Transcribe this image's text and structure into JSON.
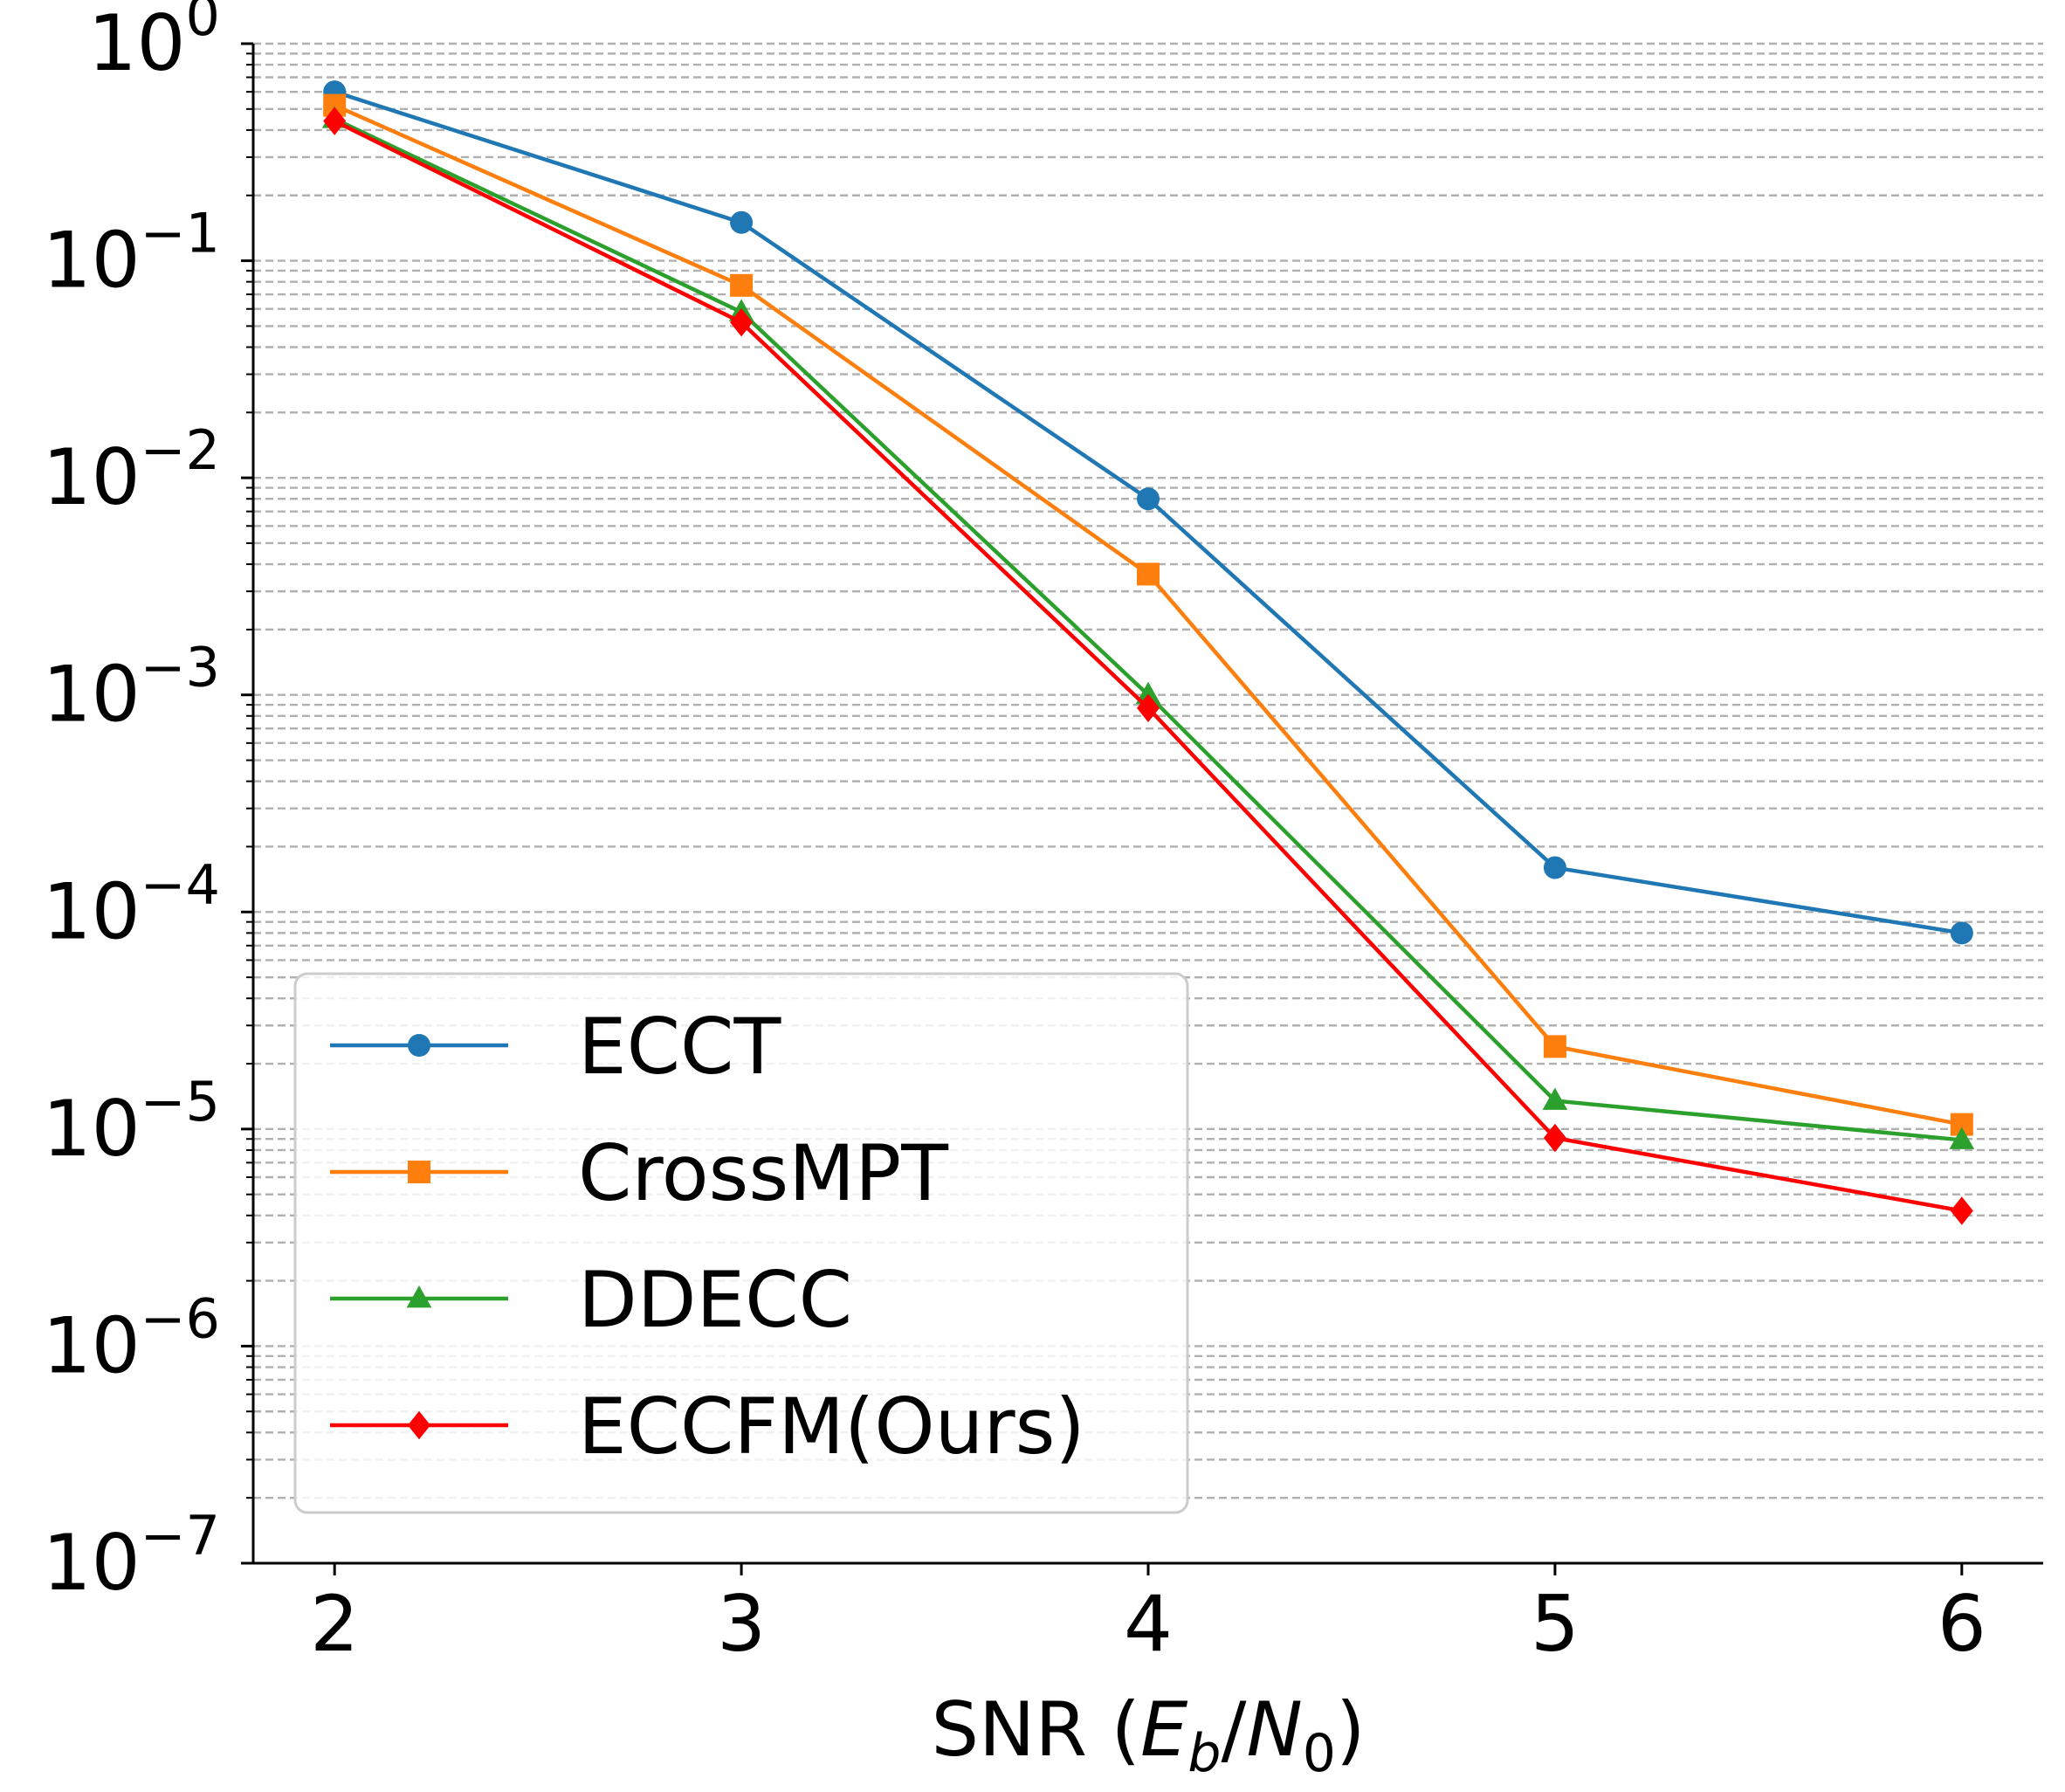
{
  "chart_data": {
    "type": "line",
    "title": "",
    "xlabel": "SNR",
    "xlabel_math": {
      "prefix": "SNR (",
      "E": "E",
      "b": "b",
      "slash": "/",
      "N": "N",
      "zero": "0",
      "suffix": ")"
    },
    "ylabel": "",
    "yscale": "log",
    "xlim": [
      1.8,
      6.2
    ],
    "ylim_exponents": [
      -7,
      0
    ],
    "x": [
      2,
      3,
      4,
      5,
      6
    ],
    "x_tick_labels": [
      "2",
      "3",
      "4",
      "5",
      "6"
    ],
    "y_tick_labels": [
      {
        "base": "10",
        "exp": "0"
      },
      {
        "base": "10",
        "exp": "−1"
      },
      {
        "base": "10",
        "exp": "−2"
      },
      {
        "base": "10",
        "exp": "−3"
      },
      {
        "base": "10",
        "exp": "−4"
      },
      {
        "base": "10",
        "exp": "−5"
      },
      {
        "base": "10",
        "exp": "−6"
      },
      {
        "base": "10",
        "exp": "−7"
      }
    ],
    "grid": "y-minor-dashed",
    "legend_position": "lower-left",
    "series": [
      {
        "name": "ECCT",
        "color": "#1f77b4",
        "marker": "circle",
        "values": [
          0.6,
          0.15,
          0.008,
          0.00016,
          8e-05
        ]
      },
      {
        "name": "CrossMPT",
        "color": "#ff7f0e",
        "marker": "square",
        "values": [
          0.52,
          0.077,
          0.0036,
          2.4e-05,
          1.05e-05
        ]
      },
      {
        "name": "DDECC",
        "color": "#2ca02c",
        "marker": "triangle",
        "values": [
          0.45,
          0.058,
          0.001,
          1.35e-05,
          8.9e-06
        ]
      },
      {
        "name": "ECCFM(Ours)",
        "color": "#ff0000",
        "marker": "diamond",
        "values": [
          0.44,
          0.052,
          0.00087,
          9.1e-06,
          4.2e-06
        ]
      }
    ]
  }
}
